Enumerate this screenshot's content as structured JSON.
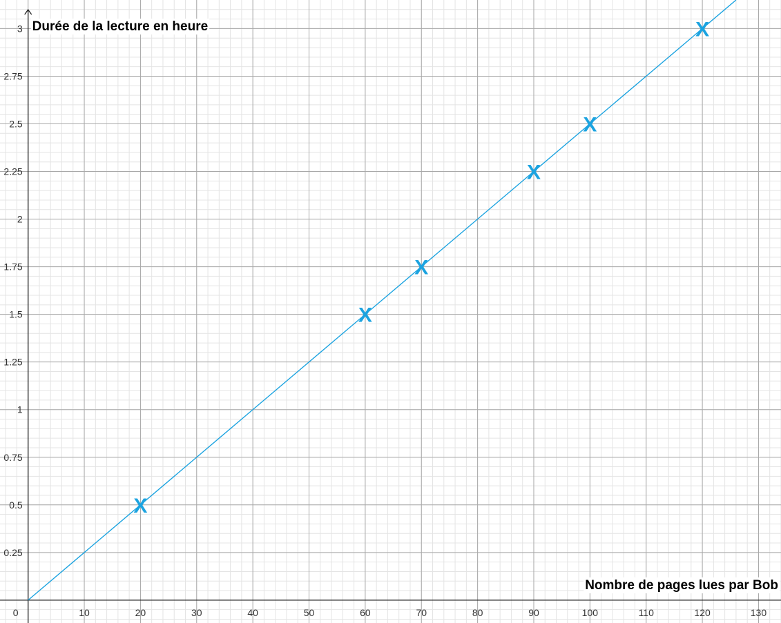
{
  "chart_data": {
    "type": "scatter",
    "title": "",
    "xlabel": "Nombre de pages lues par Bob",
    "ylabel": "Durée de la lecture en heure",
    "xlim": [
      -5,
      134
    ],
    "ylim": [
      -0.12,
      3.15
    ],
    "x_ticks": [
      0,
      10,
      20,
      30,
      40,
      50,
      60,
      70,
      80,
      90,
      100,
      110,
      120,
      130
    ],
    "y_ticks": [
      0.25,
      0.5,
      0.75,
      1,
      1.25,
      1.5,
      1.75,
      2,
      2.25,
      2.5,
      2.75,
      3
    ],
    "x_tick_labels": [
      "0",
      "10",
      "20",
      "30",
      "40",
      "50",
      "60",
      "70",
      "80",
      "90",
      "100",
      "110",
      "120",
      "130"
    ],
    "y_tick_labels": [
      "0.25",
      "0.5",
      "0.75",
      "1",
      "1.25",
      "1.5",
      "1.75",
      "2",
      "2.25",
      "2.5",
      "2.75",
      "3"
    ],
    "grid": true,
    "marker_symbol": "X",
    "color": "#1ba3e0",
    "series": [
      {
        "points": [
          {
            "x": 20,
            "y": 0.5
          },
          {
            "x": 60,
            "y": 1.5
          },
          {
            "x": 70,
            "y": 1.75
          },
          {
            "x": 90,
            "y": 2.25
          },
          {
            "x": 100,
            "y": 2.5
          },
          {
            "x": 120,
            "y": 3
          }
        ]
      }
    ],
    "line": {
      "slope": 0.025,
      "intercept": 0,
      "x_range": [
        0,
        126
      ]
    }
  }
}
